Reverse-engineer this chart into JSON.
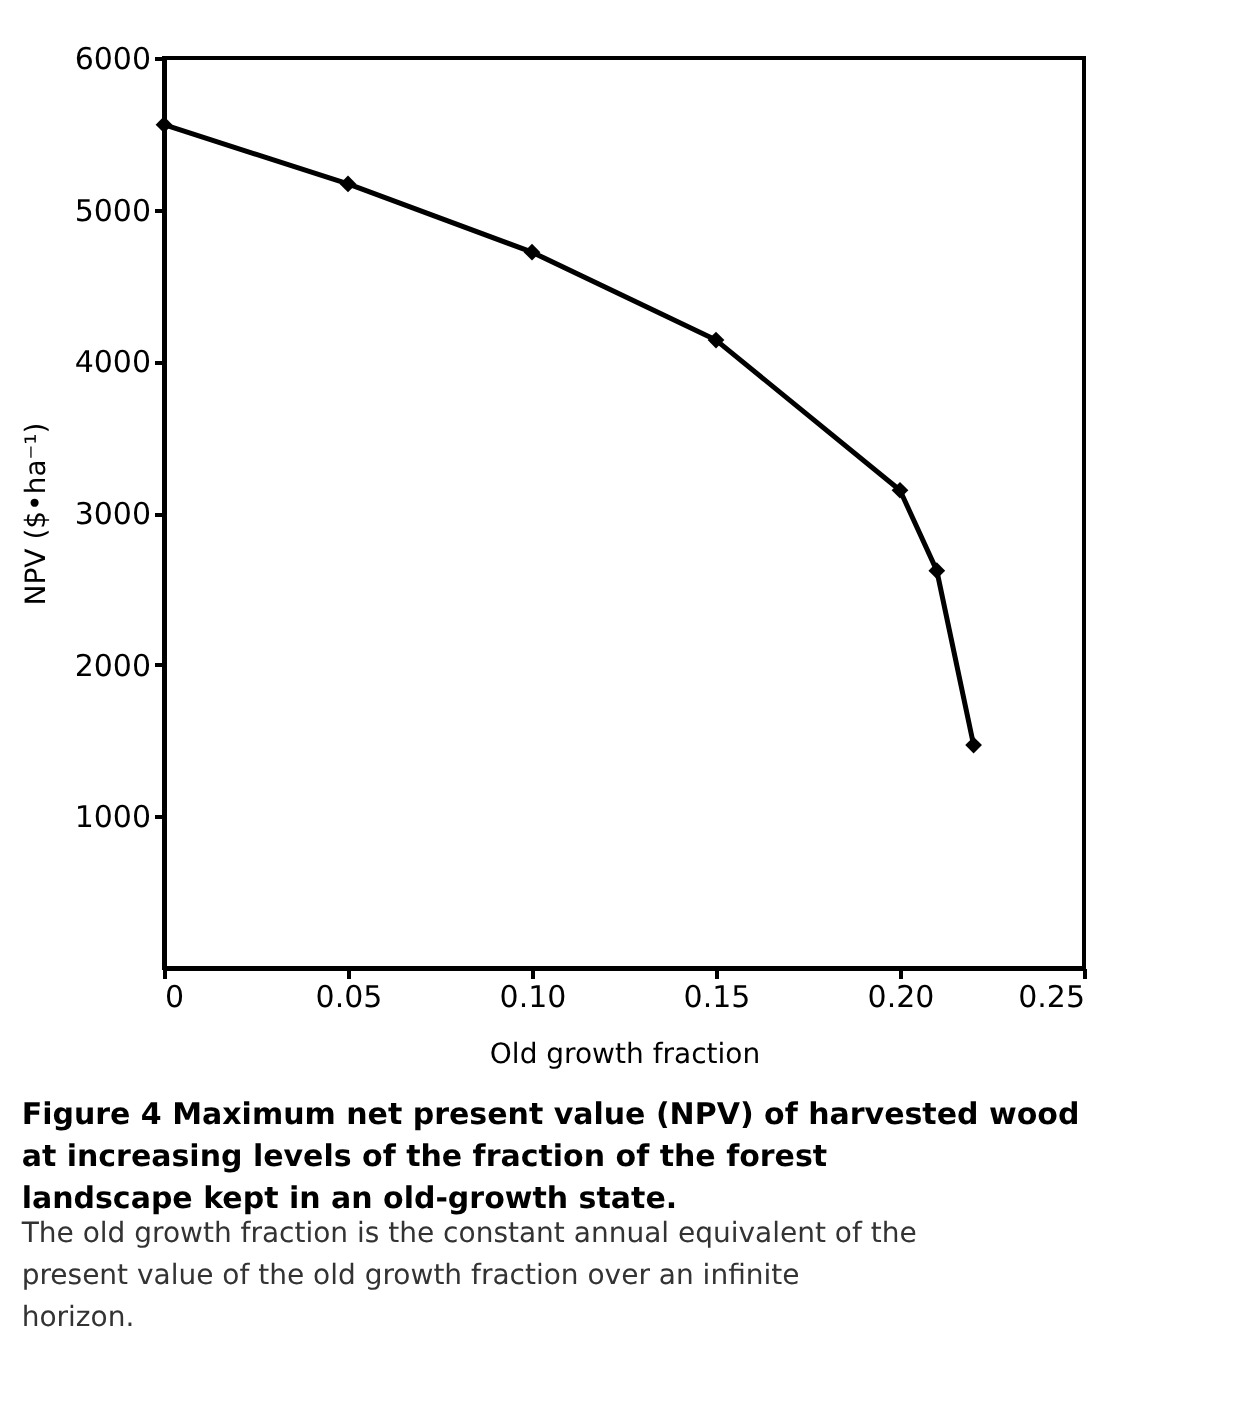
{
  "chart_data": {
    "type": "line",
    "title": "Figure 4 Maximum net present value (NPV) of harvested wood at increasing levels of the fraction of the forest landscape kept in an old-growth state.",
    "annotations": [
      "The old growth fraction is the constant annual equivalent of the present value of the old growth fraction over an infinite horizon."
    ],
    "xlabel": "Old growth fraction",
    "ylabel": "NPV ($•ha⁻¹)",
    "x": [
      0,
      0.05,
      0.1,
      0.15,
      0.2,
      0.21,
      0.22
    ],
    "series": [
      {
        "color": "#000000",
        "values": [
          5560,
          5170,
          4720,
          4140,
          3150,
          2620,
          1470
        ]
      }
    ],
    "xlim": [
      0,
      0.25
    ],
    "xticks": [
      0,
      0.05,
      {
        "value": 0.1,
        "label": "0.10"
      },
      0.15,
      {
        "value": 0.2,
        "label": "0.20"
      },
      0.25
    ],
    "ylim": [
      0,
      6000
    ],
    "yticks": [
      1000,
      2000,
      3000,
      4000,
      5000,
      6000
    ],
    "grid": false,
    "marker": "diamond",
    "line_style": "solid"
  }
}
